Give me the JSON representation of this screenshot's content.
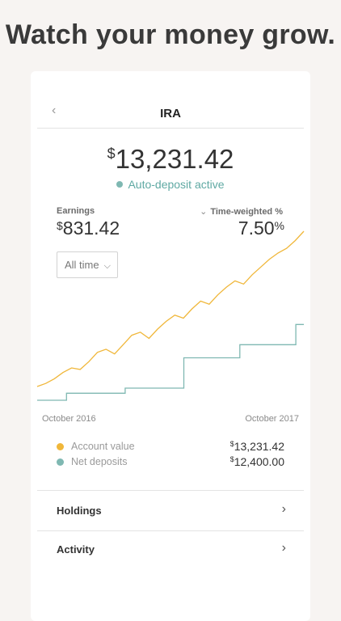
{
  "headline": "Watch your money grow.",
  "nav": {
    "back_icon": "chevron-left-icon",
    "title": "IRA"
  },
  "balance": {
    "currency": "$",
    "amount": "13,231.42"
  },
  "auto_deposit": {
    "label": "Auto-deposit active",
    "color": "#5fa9a3"
  },
  "earnings": {
    "label": "Earnings",
    "currency": "$",
    "amount": "831.42"
  },
  "time_weighted": {
    "label": "Time-weighted %",
    "value": "7.50",
    "unit": "%"
  },
  "range_select": {
    "value": "All time"
  },
  "chart_data": {
    "type": "line",
    "x_start": "October 2016",
    "x_end": "October 2017",
    "series": [
      {
        "name": "Account value",
        "color": "#f0b73a",
        "values": [
          0.0,
          0.02,
          0.05,
          0.09,
          0.12,
          0.11,
          0.16,
          0.22,
          0.24,
          0.21,
          0.27,
          0.33,
          0.35,
          0.31,
          0.37,
          0.42,
          0.46,
          0.44,
          0.5,
          0.55,
          0.53,
          0.59,
          0.64,
          0.68,
          0.66,
          0.72,
          0.77,
          0.82,
          0.86,
          0.89,
          0.94,
          1.0
        ]
      },
      {
        "name": "Net deposits",
        "color": "#7fb8b2",
        "steps": [
          {
            "t": 0.0,
            "v": 0.0
          },
          {
            "t": 0.11,
            "v": 0.07
          },
          {
            "t": 0.33,
            "v": 0.12
          },
          {
            "t": 0.55,
            "v": 0.42
          },
          {
            "t": 0.76,
            "v": 0.55
          },
          {
            "t": 0.97,
            "v": 0.75
          }
        ]
      }
    ]
  },
  "legend": [
    {
      "label": "Account value",
      "currency": "$",
      "value": "13,231.42",
      "color": "#f0b73a"
    },
    {
      "label": "Net deposits",
      "currency": "$",
      "value": "12,400.00",
      "color": "#7fb8b2"
    }
  ],
  "rows": [
    {
      "label": "Holdings",
      "icon": "chevron-right-icon"
    },
    {
      "label": "Activity",
      "icon": "chevron-right-icon"
    }
  ]
}
